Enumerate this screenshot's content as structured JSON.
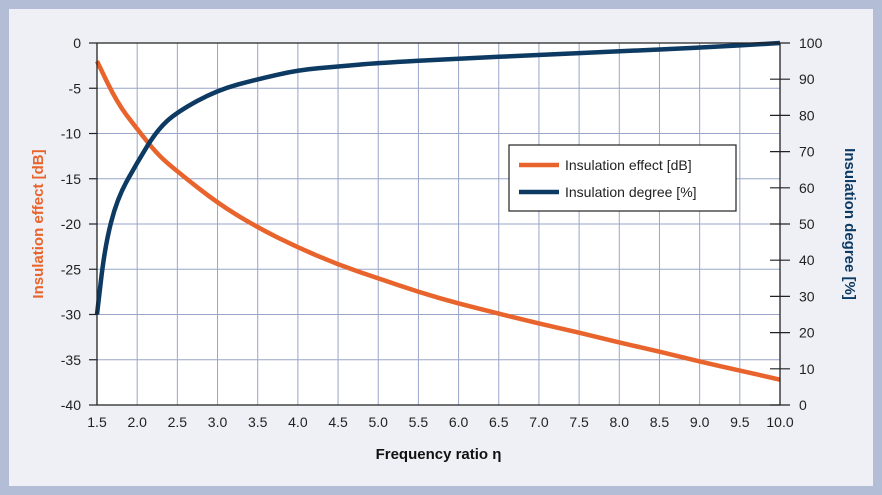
{
  "chart_data": {
    "type": "line",
    "xlabel": "Frequency ratio η",
    "ylabel_left": "Insulation effect [dB]",
    "ylabel_right": "Insulation degree [%]",
    "x_ticks": [
      "1.5",
      "2.0",
      "2.5",
      "3.0",
      "3.5",
      "4.0",
      "4.5",
      "5.0",
      "5.5",
      "6.0",
      "6.5",
      "7.0",
      "7.5",
      "8.0",
      "8.5",
      "9.0",
      "9.5",
      "10.0"
    ],
    "y_left_ticks": [
      "0",
      "-5",
      "-10",
      "-15",
      "-20",
      "-25",
      "-30",
      "-35",
      "-40"
    ],
    "y_right_ticks": [
      "100",
      "90",
      "80",
      "70",
      "60",
      "50",
      "40",
      "30",
      "20",
      "10",
      "0"
    ],
    "xlim": [
      1.5,
      10.0
    ],
    "ylim_left": [
      -40,
      0
    ],
    "ylim_right": [
      0,
      100
    ],
    "grid": true,
    "legend_position": "upper-right",
    "colors": {
      "effect": "#e8642c",
      "degree": "#0d3a63",
      "left_axis_label": "#e8642c",
      "right_axis_label": "#0d3a63",
      "grid": "#9aa5c8",
      "plot_bg": "#ffffff"
    },
    "series": [
      {
        "name": "Insulation effect [dB]",
        "axis": "left",
        "x": [
          1.5,
          1.75,
          2.0,
          2.25,
          2.5,
          3.0,
          3.5,
          4.0,
          4.5,
          5.0,
          5.5,
          6.0,
          6.5,
          7.0,
          7.5,
          8.0,
          8.5,
          9.0,
          9.5,
          10.0
        ],
        "values": [
          -2.0,
          -6.6,
          -9.5,
          -12.3,
          -14.2,
          -17.7,
          -20.4,
          -22.6,
          -24.5,
          -26.0,
          -27.5,
          -28.8,
          -29.9,
          -31.0,
          -32.0,
          -33.1,
          -34.1,
          -35.2,
          -36.2,
          -37.2
        ]
      },
      {
        "name": "Insulation degree [%]",
        "axis": "right",
        "x": [
          1.5,
          1.6,
          1.75,
          2.0,
          2.25,
          2.5,
          3.0,
          3.5,
          4.0,
          4.5,
          5.0,
          6.0,
          7.0,
          8.0,
          9.0,
          10.0
        ],
        "values": [
          25,
          44,
          57,
          67,
          76,
          81,
          87,
          90,
          92.5,
          93.5,
          94.5,
          95.7,
          96.7,
          97.7,
          98.7,
          100
        ]
      }
    ]
  }
}
